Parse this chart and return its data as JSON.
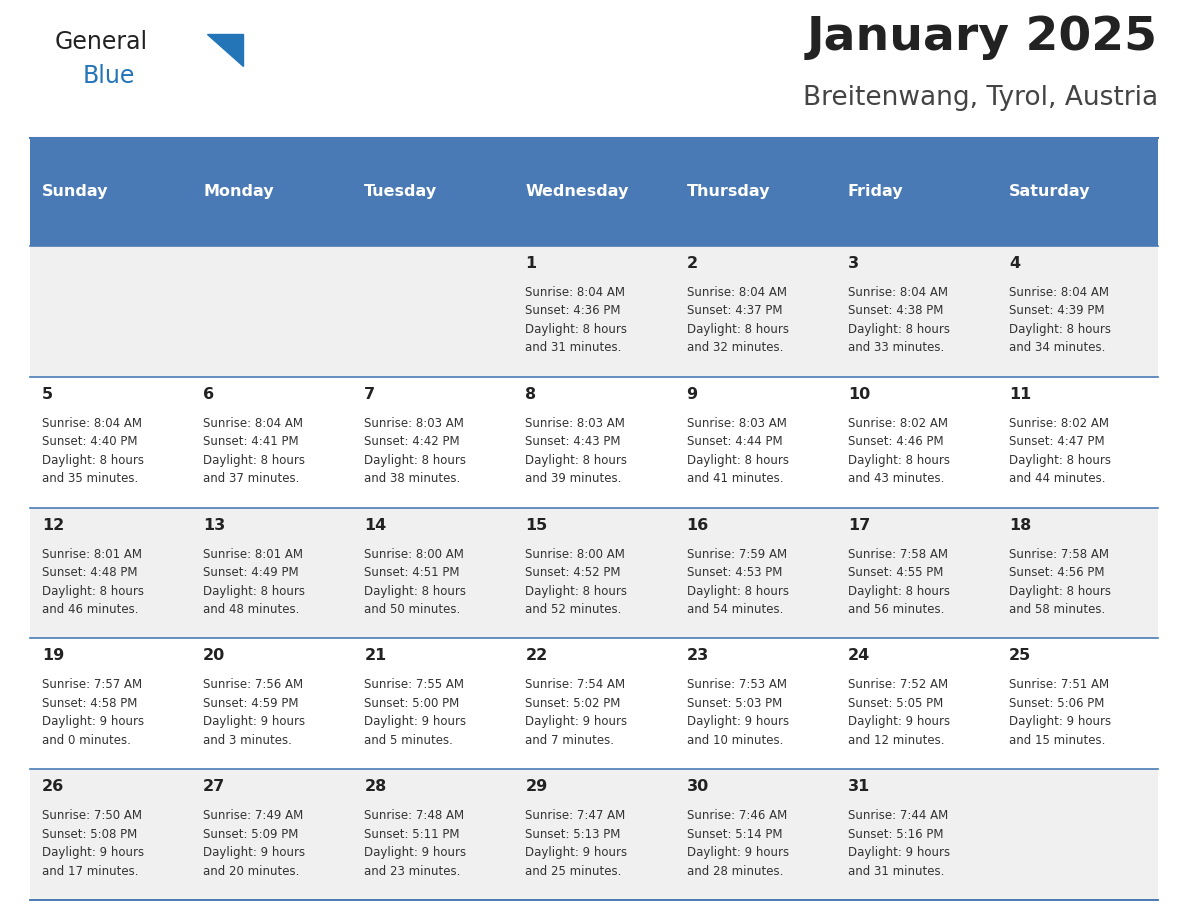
{
  "title": "January 2025",
  "subtitle": "Breitenwang, Tyrol, Austria",
  "header_bg": "#4a7ab5",
  "header_text_color": "#ffffff",
  "cell_bg_odd": "#f0f0f0",
  "cell_bg_even": "#ffffff",
  "border_color": "#4a7ab5",
  "text_color": "#333333",
  "day_num_color": "#222222",
  "logo_text_color": "#222222",
  "logo_blue_color": "#2475b8",
  "title_color": "#222222",
  "subtitle_color": "#444444",
  "days_of_week": [
    "Sunday",
    "Monday",
    "Tuesday",
    "Wednesday",
    "Thursday",
    "Friday",
    "Saturday"
  ],
  "calendar": [
    [
      {
        "day": "",
        "info": ""
      },
      {
        "day": "",
        "info": ""
      },
      {
        "day": "",
        "info": ""
      },
      {
        "day": "1",
        "info": "Sunrise: 8:04 AM\nSunset: 4:36 PM\nDaylight: 8 hours\nand 31 minutes."
      },
      {
        "day": "2",
        "info": "Sunrise: 8:04 AM\nSunset: 4:37 PM\nDaylight: 8 hours\nand 32 minutes."
      },
      {
        "day": "3",
        "info": "Sunrise: 8:04 AM\nSunset: 4:38 PM\nDaylight: 8 hours\nand 33 minutes."
      },
      {
        "day": "4",
        "info": "Sunrise: 8:04 AM\nSunset: 4:39 PM\nDaylight: 8 hours\nand 34 minutes."
      }
    ],
    [
      {
        "day": "5",
        "info": "Sunrise: 8:04 AM\nSunset: 4:40 PM\nDaylight: 8 hours\nand 35 minutes."
      },
      {
        "day": "6",
        "info": "Sunrise: 8:04 AM\nSunset: 4:41 PM\nDaylight: 8 hours\nand 37 minutes."
      },
      {
        "day": "7",
        "info": "Sunrise: 8:03 AM\nSunset: 4:42 PM\nDaylight: 8 hours\nand 38 minutes."
      },
      {
        "day": "8",
        "info": "Sunrise: 8:03 AM\nSunset: 4:43 PM\nDaylight: 8 hours\nand 39 minutes."
      },
      {
        "day": "9",
        "info": "Sunrise: 8:03 AM\nSunset: 4:44 PM\nDaylight: 8 hours\nand 41 minutes."
      },
      {
        "day": "10",
        "info": "Sunrise: 8:02 AM\nSunset: 4:46 PM\nDaylight: 8 hours\nand 43 minutes."
      },
      {
        "day": "11",
        "info": "Sunrise: 8:02 AM\nSunset: 4:47 PM\nDaylight: 8 hours\nand 44 minutes."
      }
    ],
    [
      {
        "day": "12",
        "info": "Sunrise: 8:01 AM\nSunset: 4:48 PM\nDaylight: 8 hours\nand 46 minutes."
      },
      {
        "day": "13",
        "info": "Sunrise: 8:01 AM\nSunset: 4:49 PM\nDaylight: 8 hours\nand 48 minutes."
      },
      {
        "day": "14",
        "info": "Sunrise: 8:00 AM\nSunset: 4:51 PM\nDaylight: 8 hours\nand 50 minutes."
      },
      {
        "day": "15",
        "info": "Sunrise: 8:00 AM\nSunset: 4:52 PM\nDaylight: 8 hours\nand 52 minutes."
      },
      {
        "day": "16",
        "info": "Sunrise: 7:59 AM\nSunset: 4:53 PM\nDaylight: 8 hours\nand 54 minutes."
      },
      {
        "day": "17",
        "info": "Sunrise: 7:58 AM\nSunset: 4:55 PM\nDaylight: 8 hours\nand 56 minutes."
      },
      {
        "day": "18",
        "info": "Sunrise: 7:58 AM\nSunset: 4:56 PM\nDaylight: 8 hours\nand 58 minutes."
      }
    ],
    [
      {
        "day": "19",
        "info": "Sunrise: 7:57 AM\nSunset: 4:58 PM\nDaylight: 9 hours\nand 0 minutes."
      },
      {
        "day": "20",
        "info": "Sunrise: 7:56 AM\nSunset: 4:59 PM\nDaylight: 9 hours\nand 3 minutes."
      },
      {
        "day": "21",
        "info": "Sunrise: 7:55 AM\nSunset: 5:00 PM\nDaylight: 9 hours\nand 5 minutes."
      },
      {
        "day": "22",
        "info": "Sunrise: 7:54 AM\nSunset: 5:02 PM\nDaylight: 9 hours\nand 7 minutes."
      },
      {
        "day": "23",
        "info": "Sunrise: 7:53 AM\nSunset: 5:03 PM\nDaylight: 9 hours\nand 10 minutes."
      },
      {
        "day": "24",
        "info": "Sunrise: 7:52 AM\nSunset: 5:05 PM\nDaylight: 9 hours\nand 12 minutes."
      },
      {
        "day": "25",
        "info": "Sunrise: 7:51 AM\nSunset: 5:06 PM\nDaylight: 9 hours\nand 15 minutes."
      }
    ],
    [
      {
        "day": "26",
        "info": "Sunrise: 7:50 AM\nSunset: 5:08 PM\nDaylight: 9 hours\nand 17 minutes."
      },
      {
        "day": "27",
        "info": "Sunrise: 7:49 AM\nSunset: 5:09 PM\nDaylight: 9 hours\nand 20 minutes."
      },
      {
        "day": "28",
        "info": "Sunrise: 7:48 AM\nSunset: 5:11 PM\nDaylight: 9 hours\nand 23 minutes."
      },
      {
        "day": "29",
        "info": "Sunrise: 7:47 AM\nSunset: 5:13 PM\nDaylight: 9 hours\nand 25 minutes."
      },
      {
        "day": "30",
        "info": "Sunrise: 7:46 AM\nSunset: 5:14 PM\nDaylight: 9 hours\nand 28 minutes."
      },
      {
        "day": "31",
        "info": "Sunrise: 7:44 AM\nSunset: 5:16 PM\nDaylight: 9 hours\nand 31 minutes."
      },
      {
        "day": "",
        "info": ""
      }
    ]
  ]
}
